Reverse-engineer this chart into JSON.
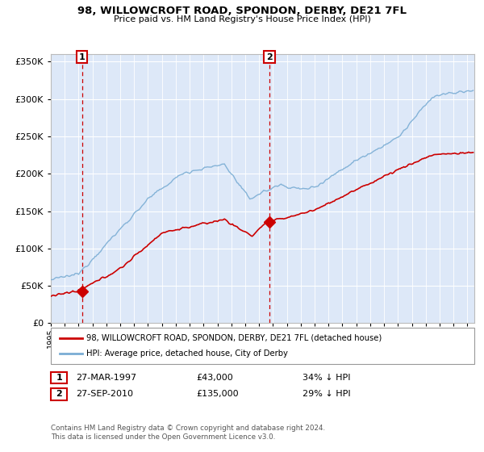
{
  "title": "98, WILLOWCROFT ROAD, SPONDON, DERBY, DE21 7FL",
  "subtitle": "Price paid vs. HM Land Registry's House Price Index (HPI)",
  "sale1_date": 1997.24,
  "sale1_price": 43000,
  "sale2_date": 2010.74,
  "sale2_price": 135000,
  "legend_red": "98, WILLOWCROFT ROAD, SPONDON, DERBY, DE21 7FL (detached house)",
  "legend_blue": "HPI: Average price, detached house, City of Derby",
  "table1_date": "27-MAR-1997",
  "table1_price": "£43,000",
  "table1_hpi": "34% ↓ HPI",
  "table2_date": "27-SEP-2010",
  "table2_price": "£135,000",
  "table2_hpi": "29% ↓ HPI",
  "footer": "Contains HM Land Registry data © Crown copyright and database right 2024.\nThis data is licensed under the Open Government Licence v3.0.",
  "ylim": [
    0,
    360000
  ],
  "xlim": [
    1995.0,
    2025.5
  ],
  "bg_color": "#dde8f8",
  "grid_color": "#ffffff",
  "red_color": "#cc0000",
  "blue_color": "#7aadd4"
}
